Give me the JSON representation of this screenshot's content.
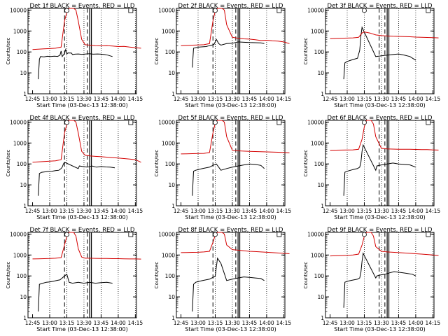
{
  "xlabel": "Start Time (03-Dec-13 12:38:00)",
  "ylabel": "Counts/sec",
  "x_ticks": [
    "12:45",
    "13:00",
    "13:15",
    "13:30",
    "13:45",
    "14:00",
    "14:15"
  ],
  "y_ticks": [
    "1",
    "10",
    "100",
    "1000",
    "10000"
  ],
  "colors": {
    "events": "#000000",
    "lld": "#d40000",
    "axes": "#000000"
  },
  "chart_data": [
    {
      "type": "line",
      "title": "Det 1f BLACK = Events, RED = LLD",
      "x_range_minutes": [
        -2,
        97
      ],
      "ylim": [
        1,
        12000
      ],
      "y_scale": "log",
      "grid": "dotted-vertical",
      "series": [
        {
          "name": "Events",
          "x": [
            5,
            6,
            7,
            10,
            13,
            16,
            19,
            22,
            24,
            25,
            26,
            28,
            29,
            30,
            31,
            34,
            35,
            37,
            40,
            43,
            46,
            50,
            53,
            57,
            60,
            63,
            66,
            70
          ],
          "values": [
            5,
            45,
            60,
            58,
            62,
            60,
            63,
            61,
            70,
            110,
            60,
            85,
            130,
            80,
            90,
            88,
            75,
            78,
            80,
            77,
            79,
            82,
            78,
            80,
            78,
            75,
            70,
            60
          ]
        },
        {
          "name": "LLD",
          "x": [
            0,
            5,
            10,
            15,
            20,
            25,
            28,
            30,
            32,
            34,
            36,
            38,
            40,
            43,
            46,
            50,
            55,
            60,
            65,
            70,
            75,
            80,
            85,
            90,
            95
          ],
          "values": [
            130,
            135,
            140,
            145,
            150,
            170,
            3000,
            8000,
            12000,
            12000,
            12000,
            10000,
            3000,
            400,
            220,
            210,
            200,
            195,
            200,
            190,
            180,
            185,
            170,
            160,
            150
          ]
        }
      ]
    },
    {
      "type": "line",
      "title": "Det 2f BLACK = Events, RED = LLD",
      "x_range_minutes": [
        -2,
        97
      ],
      "ylim": [
        1,
        12000
      ],
      "y_scale": "log",
      "grid": "dotted-vertical",
      "series": [
        {
          "name": "Events",
          "x": [
            10,
            11,
            13,
            16,
            19,
            22,
            25,
            27,
            29,
            31,
            33,
            35,
            40,
            45,
            50,
            55,
            60,
            65,
            70,
            73
          ],
          "values": [
            18,
            150,
            160,
            170,
            175,
            180,
            200,
            210,
            230,
            400,
            250,
            210,
            250,
            260,
            300,
            290,
            280,
            275,
            270,
            250
          ]
        },
        {
          "name": "LLD",
          "x": [
            0,
            5,
            10,
            15,
            20,
            25,
            28,
            30,
            32,
            34,
            36,
            38,
            40,
            45,
            50,
            55,
            60,
            65,
            70,
            75,
            80,
            85,
            90,
            95
          ],
          "values": [
            200,
            205,
            210,
            215,
            220,
            250,
            3000,
            9000,
            12000,
            12000,
            12000,
            10000,
            2000,
            500,
            450,
            420,
            410,
            380,
            350,
            360,
            340,
            330,
            300,
            250
          ]
        }
      ]
    },
    {
      "type": "line",
      "title": "Det 3f BLACK = Events, RED = LLD",
      "x_range_minutes": [
        -2,
        97
      ],
      "ylim": [
        1,
        12000
      ],
      "y_scale": "log",
      "grid": "dotted-vertical",
      "series": [
        {
          "name": "Events",
          "x": [
            12,
            13,
            15,
            18,
            21,
            24,
            26,
            27,
            28,
            40,
            45,
            50,
            55,
            60,
            65,
            70,
            75
          ],
          "values": [
            5,
            30,
            35,
            40,
            45,
            50,
            120,
            600,
            1500,
            60,
            65,
            70,
            75,
            80,
            70,
            60,
            40
          ]
        },
        {
          "name": "LLD",
          "x": [
            0,
            5,
            10,
            15,
            20,
            25,
            28,
            30,
            35,
            40,
            45,
            50,
            55,
            60,
            65,
            70,
            75,
            80,
            85,
            90,
            95
          ],
          "values": [
            430,
            440,
            450,
            460,
            470,
            500,
            800,
            900,
            800,
            650,
            600,
            580,
            560,
            550,
            540,
            530,
            510,
            500,
            490,
            480,
            470
          ]
        }
      ]
    },
    {
      "type": "line",
      "title": "Det 4f BLACK = Events, RED = LLD",
      "x_range_minutes": [
        -2,
        97
      ],
      "ylim": [
        1,
        12000
      ],
      "y_scale": "log",
      "grid": "dotted-vertical",
      "series": [
        {
          "name": "Events",
          "x": [
            5,
            6,
            8,
            11,
            14,
            17,
            20,
            23,
            25,
            26,
            27,
            28,
            40,
            41,
            44,
            48,
            52,
            56,
            60,
            64,
            68,
            72
          ],
          "values": [
            3,
            35,
            40,
            42,
            44,
            45,
            48,
            50,
            60,
            70,
            100,
            120,
            60,
            80,
            75,
            70,
            80,
            70,
            75,
            72,
            70,
            65
          ]
        },
        {
          "name": "LLD",
          "x": [
            0,
            5,
            10,
            15,
            20,
            25,
            28,
            30,
            32,
            34,
            36,
            38,
            40,
            43,
            46,
            50,
            55,
            60,
            65,
            70,
            75,
            80,
            85,
            90,
            95
          ],
          "values": [
            120,
            125,
            130,
            135,
            140,
            160,
            3000,
            8000,
            12000,
            12000,
            12000,
            10000,
            3000,
            400,
            260,
            240,
            230,
            220,
            210,
            200,
            190,
            180,
            170,
            160,
            120
          ]
        }
      ]
    },
    {
      "type": "line",
      "title": "Det 5f BLACK = Events, RED = LLD",
      "x_range_minutes": [
        -2,
        97
      ],
      "ylim": [
        1,
        12000
      ],
      "y_scale": "log",
      "grid": "dotted-vertical",
      "series": [
        {
          "name": "Events",
          "x": [
            10,
            11,
            13,
            16,
            19,
            22,
            25,
            27,
            29,
            31,
            35,
            40,
            45,
            50,
            55,
            60,
            65,
            70,
            73
          ],
          "values": [
            3,
            45,
            50,
            55,
            60,
            65,
            70,
            80,
            90,
            100,
            50,
            60,
            70,
            80,
            90,
            100,
            95,
            85,
            60
          ]
        },
        {
          "name": "LLD",
          "x": [
            0,
            5,
            10,
            15,
            20,
            25,
            28,
            30,
            32,
            34,
            36,
            38,
            40,
            45,
            50,
            55,
            60,
            65,
            70,
            75,
            80,
            85,
            90,
            95
          ],
          "values": [
            300,
            305,
            310,
            315,
            320,
            350,
            3000,
            9000,
            12000,
            12000,
            12000,
            10000,
            2000,
            450,
            420,
            410,
            400,
            390,
            380,
            375,
            370,
            360,
            350,
            340
          ]
        }
      ]
    },
    {
      "type": "line",
      "title": "Det 6f BLACK = Events, RED = LLD",
      "x_range_minutes": [
        -2,
        97
      ],
      "ylim": [
        1,
        12000
      ],
      "y_scale": "log",
      "grid": "dotted-vertical",
      "series": [
        {
          "name": "Events",
          "x": [
            12,
            13,
            15,
            18,
            21,
            24,
            26,
            27,
            28,
            29,
            40,
            41,
            45,
            50,
            55,
            60,
            65,
            70,
            75
          ],
          "values": [
            3,
            40,
            45,
            50,
            55,
            60,
            70,
            120,
            400,
            800,
            50,
            80,
            90,
            100,
            110,
            100,
            95,
            90,
            70
          ]
        },
        {
          "name": "LLD",
          "x": [
            0,
            5,
            10,
            15,
            20,
            25,
            28,
            30,
            32,
            34,
            36,
            38,
            40,
            45,
            50,
            55,
            60,
            65,
            70,
            75,
            80,
            85,
            90,
            95
          ],
          "values": [
            450,
            455,
            460,
            465,
            470,
            500,
            1500,
            6000,
            12000,
            12000,
            12000,
            8000,
            2000,
            550,
            520,
            510,
            500,
            500,
            500,
            490,
            480,
            480,
            470,
            460
          ]
        }
      ]
    },
    {
      "type": "line",
      "title": "Det 7f BLACK = Events, RED = LLD",
      "x_range_minutes": [
        -2,
        97
      ],
      "ylim": [
        1,
        12000
      ],
      "y_scale": "log",
      "grid": "dotted-vertical",
      "series": [
        {
          "name": "Events",
          "x": [
            5,
            6,
            9,
            12,
            15,
            18,
            21,
            24,
            26,
            28,
            30,
            32,
            35,
            40,
            45,
            50,
            55,
            60,
            65,
            70
          ],
          "values": [
            2,
            40,
            45,
            50,
            52,
            55,
            60,
            65,
            80,
            100,
            120,
            50,
            45,
            50,
            45,
            50,
            45,
            48,
            50,
            45
          ]
        },
        {
          "name": "LLD",
          "x": [
            0,
            5,
            10,
            15,
            20,
            25,
            28,
            30,
            32,
            34,
            36,
            38,
            40,
            43,
            46,
            50,
            55,
            60,
            65,
            70,
            75,
            80,
            85,
            90,
            95
          ],
          "values": [
            650,
            660,
            670,
            680,
            700,
            750,
            3000,
            8000,
            12000,
            12000,
            12000,
            8000,
            2000,
            800,
            700,
            700,
            690,
            680,
            680,
            670,
            670,
            660,
            650,
            650,
            640
          ]
        }
      ]
    },
    {
      "type": "line",
      "title": "Det 8f BLACK = Events, RED = LLD",
      "x_range_minutes": [
        -2,
        97
      ],
      "ylim": [
        1,
        12000
      ],
      "y_scale": "log",
      "grid": "dotted-vertical",
      "series": [
        {
          "name": "Events",
          "x": [
            10,
            11,
            13,
            16,
            19,
            22,
            25,
            27,
            29,
            30,
            32,
            35,
            40,
            45,
            50,
            55,
            60,
            65,
            70,
            73
          ],
          "values": [
            2,
            40,
            50,
            55,
            60,
            65,
            70,
            80,
            90,
            100,
            700,
            400,
            60,
            70,
            80,
            90,
            85,
            80,
            75,
            60
          ]
        },
        {
          "name": "LLD",
          "x": [
            0,
            5,
            10,
            15,
            20,
            25,
            28,
            30,
            32,
            34,
            36,
            38,
            40,
            45,
            50,
            55,
            60,
            65,
            70,
            75,
            80,
            85,
            90,
            95
          ],
          "values": [
            1300,
            1320,
            1340,
            1350,
            1400,
            1500,
            4000,
            9000,
            12000,
            12000,
            12000,
            10000,
            3000,
            1800,
            1700,
            1600,
            1500,
            1450,
            1400,
            1350,
            1300,
            1250,
            1200,
            1150
          ]
        }
      ]
    },
    {
      "type": "line",
      "title": "Det 9f BLACK = Events, RED = LLD",
      "x_range_minutes": [
        -2,
        97
      ],
      "ylim": [
        1,
        12000
      ],
      "y_scale": "log",
      "grid": "dotted-vertical",
      "series": [
        {
          "name": "Events",
          "x": [
            12,
            13,
            15,
            18,
            21,
            24,
            26,
            27,
            28,
            29,
            40,
            41,
            44,
            48,
            52,
            56,
            60,
            64,
            68,
            72,
            75
          ],
          "values": [
            3,
            50,
            55,
            60,
            65,
            70,
            80,
            150,
            500,
            1200,
            80,
            100,
            110,
            120,
            140,
            160,
            150,
            140,
            130,
            120,
            100
          ]
        },
        {
          "name": "LLD",
          "x": [
            0,
            5,
            10,
            15,
            20,
            25,
            28,
            30,
            32,
            34,
            36,
            38,
            40,
            45,
            50,
            55,
            60,
            65,
            70,
            75,
            80,
            85,
            90,
            95
          ],
          "values": [
            900,
            920,
            940,
            960,
            1000,
            1100,
            3000,
            8000,
            12000,
            12000,
            12000,
            8000,
            2500,
            1500,
            1400,
            1350,
            1300,
            1250,
            1200,
            1150,
            1100,
            1050,
            1000,
            950
          ]
        }
      ]
    }
  ],
  "markers": {
    "dashed_x": [
      [
        35,
        55
      ],
      [
        35,
        55
      ],
      [
        50,
        55
      ],
      [
        35,
        55
      ],
      [
        35,
        55
      ],
      [
        50,
        55
      ],
      [
        35,
        55
      ],
      [
        35,
        55
      ],
      [
        50,
        55
      ]
    ],
    "solid_x": [
      57,
      58.5
    ],
    "dotted_grid_x": [
      15,
      30,
      45,
      60,
      75,
      90
    ]
  }
}
